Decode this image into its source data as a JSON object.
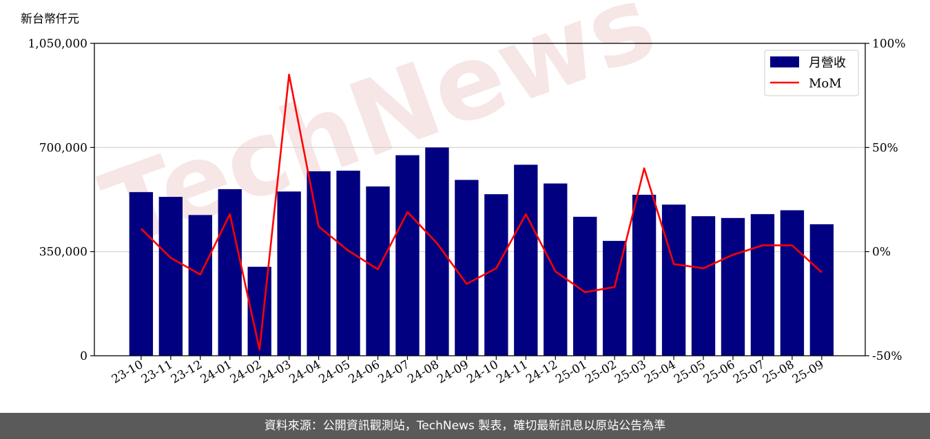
{
  "chart_data": {
    "type": "bar",
    "unit_label": "新台幣仟元",
    "categories": [
      "23-10",
      "23-11",
      "23-12",
      "24-01",
      "24-02",
      "24-03",
      "24-04",
      "24-05",
      "24-06",
      "24-07",
      "24-08",
      "24-09",
      "24-10",
      "24-11",
      "24-12",
      "25-01",
      "25-02",
      "25-03",
      "25-04",
      "25-05",
      "25-06",
      "25-07",
      "25-08",
      "25-09"
    ],
    "series": [
      {
        "name": "月營收",
        "axis": "left",
        "color": "#000080",
        "values": [
          550000,
          534000,
          473000,
          560000,
          299000,
          552000,
          620000,
          622000,
          569000,
          674000,
          700000,
          591000,
          543000,
          642000,
          579000,
          467000,
          386000,
          541000,
          508000,
          469000,
          463000,
          476000,
          489000,
          442000
        ]
      },
      {
        "name": "MoM",
        "axis": "right",
        "color": "#ff0000",
        "type": "line",
        "values": [
          11,
          -3,
          -11,
          18,
          -47,
          85,
          12,
          0.5,
          -8.5,
          19,
          4,
          -15.5,
          -8,
          18,
          -9.5,
          -19.5,
          -17,
          40,
          -6,
          -8,
          -1.5,
          3,
          3,
          -10
        ]
      }
    ],
    "y_left": {
      "lim": [
        0,
        1050000
      ],
      "ticks": [
        0,
        350000,
        700000,
        1050000
      ],
      "tick_labels": [
        "0",
        "350,000",
        "700,000",
        "1,050,000"
      ]
    },
    "y_right": {
      "lim": [
        -50,
        100
      ],
      "ticks": [
        -50,
        0,
        50,
        100
      ],
      "tick_labels": [
        "-50%",
        "0%",
        "50%",
        "100%"
      ]
    },
    "grid": "horizontal",
    "legend_position": "top-right"
  },
  "watermark": "TechNews",
  "footer": {
    "source_text": "資料來源：公開資訊觀測站，TechNews 製表，確切最新訊息以原站公告為準"
  }
}
